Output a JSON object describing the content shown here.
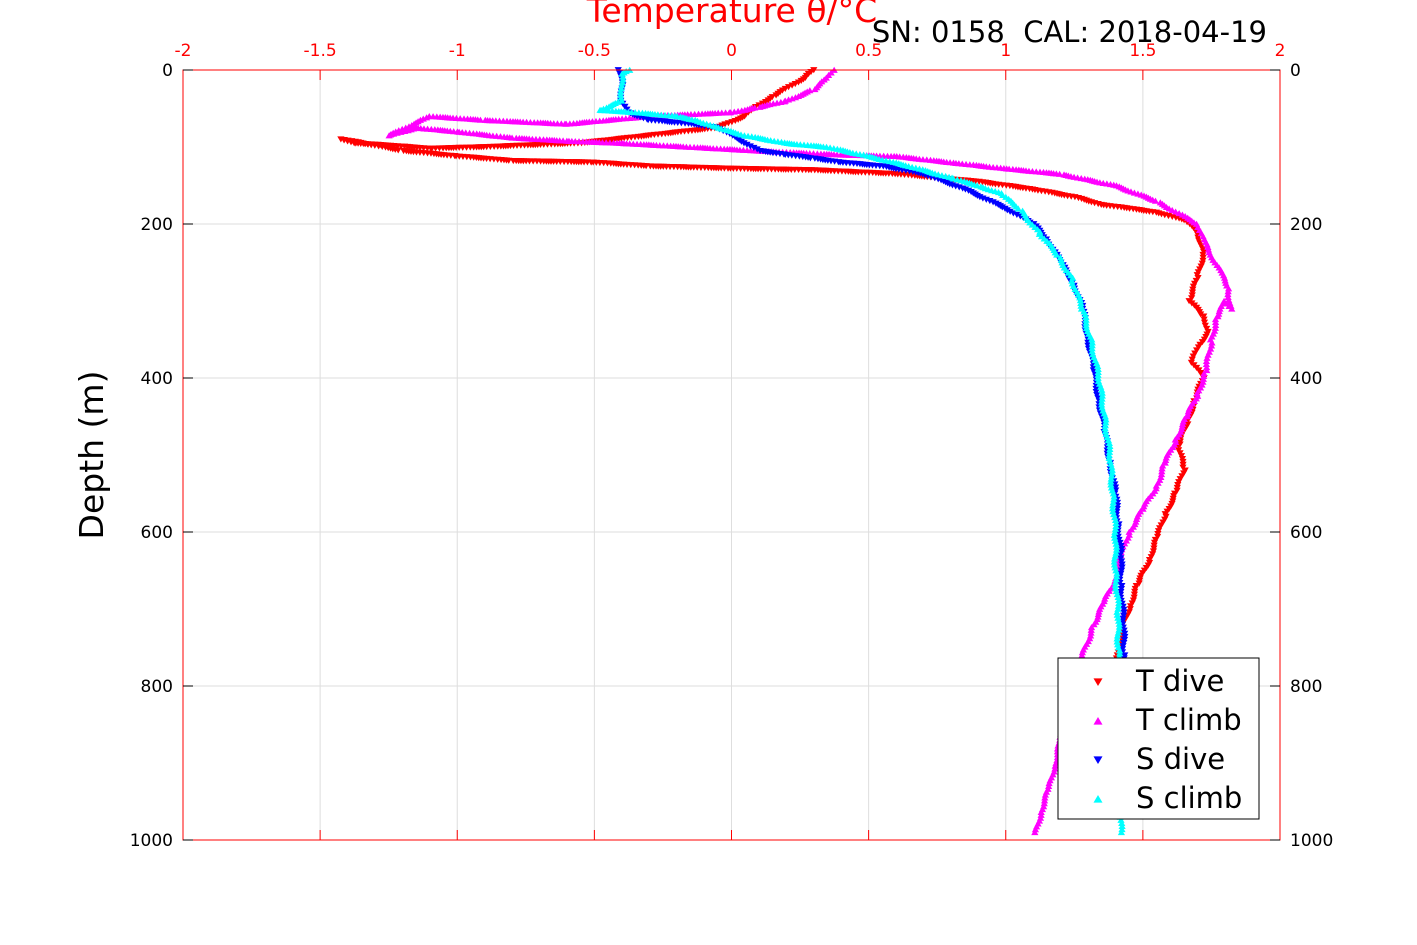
{
  "header": {
    "annotation": "SN: 0158  CAL: 2018-04-19"
  },
  "chart_data": {
    "type": "scatter",
    "title": "",
    "xlabel": "Temperature θ/°C",
    "ylabel": "Depth (m)",
    "xlim": [
      -2,
      2
    ],
    "ylim": [
      0,
      1000
    ],
    "y_reversed": true,
    "x_ticks": [
      "-2",
      "-1.5",
      "-1",
      "-0.5",
      "0",
      "0.5",
      "1",
      "1.5",
      "2"
    ],
    "y_ticks": [
      "0",
      "200",
      "400",
      "600",
      "800",
      "1000"
    ],
    "x_tick_values": [
      -2,
      -1.5,
      -1,
      -0.5,
      0,
      0.5,
      1,
      1.5,
      2
    ],
    "y_tick_values": [
      0,
      200,
      400,
      600,
      800,
      1000
    ],
    "grid": true,
    "legend_position": "bottom-right",
    "axis_color": "#ff0000",
    "series": [
      {
        "name": "T dive",
        "marker": "triangle-down",
        "color": "#ff0000",
        "x": [
          0.3,
          0.27,
          0.22,
          0.15,
          0.08,
          0.05,
          -0.05,
          -0.3,
          -0.55,
          -0.9,
          -1.1,
          -1.25,
          -1.38,
          -1.42,
          -1.2,
          -1.0,
          -0.8,
          -0.5,
          -0.3,
          0.0,
          0.3,
          0.6,
          0.9,
          1.1,
          1.25,
          1.35,
          1.45,
          1.55,
          1.65,
          1.7,
          1.72,
          1.7,
          1.67,
          1.72,
          1.74,
          1.7,
          1.68,
          1.72,
          1.69,
          1.66,
          1.63,
          1.65,
          1.62,
          1.58,
          1.55,
          1.52,
          1.48,
          1.45,
          1.43,
          1.42,
          1.41,
          1.4
        ],
        "y": [
          0,
          10,
          20,
          35,
          50,
          60,
          75,
          85,
          95,
          100,
          102,
          98,
          95,
          90,
          105,
          112,
          118,
          120,
          125,
          128,
          130,
          135,
          145,
          155,
          165,
          175,
          180,
          185,
          195,
          210,
          240,
          270,
          300,
          320,
          340,
          360,
          380,
          400,
          430,
          460,
          490,
          520,
          550,
          580,
          610,
          640,
          670,
          700,
          720,
          740,
          760,
          780
        ]
      },
      {
        "name": "T climb",
        "marker": "triangle-up",
        "color": "#ff00ff",
        "x": [
          1.11,
          1.13,
          1.16,
          1.18,
          1.2,
          1.24,
          1.28,
          1.32,
          1.36,
          1.4,
          1.42,
          1.45,
          1.5,
          1.55,
          1.58,
          1.62,
          1.66,
          1.7,
          1.73,
          1.75,
          1.77,
          1.8,
          1.82,
          1.81,
          1.78,
          1.75,
          1.72,
          1.7,
          1.65,
          1.55,
          1.4,
          1.2,
          1.0,
          0.8,
          0.6,
          0.4,
          0.1,
          -0.15,
          -0.4,
          -0.6,
          -0.8,
          -1.0,
          -1.15,
          -1.25,
          -1.1,
          -0.9,
          -0.6,
          -0.3,
          0.0,
          0.1,
          0.2,
          0.3,
          0.35,
          0.37
        ],
        "y": [
          990,
          960,
          930,
          900,
          870,
          800,
          760,
          720,
          690,
          660,
          630,
          600,
          570,
          540,
          510,
          480,
          450,
          420,
          390,
          350,
          320,
          300,
          310,
          280,
          260,
          240,
          220,
          200,
          190,
          170,
          150,
          135,
          128,
          120,
          112,
          110,
          105,
          100,
          95,
          92,
          88,
          80,
          75,
          85,
          60,
          65,
          70,
          60,
          55,
          48,
          40,
          25,
          10,
          0
        ]
      },
      {
        "name": "S dive",
        "marker": "triangle-down",
        "color": "#0000ff",
        "x": [
          -0.41,
          -0.4,
          -0.4,
          -0.38,
          -0.3,
          -0.15,
          -0.05,
          0.0,
          0.05,
          0.1,
          0.2,
          0.3,
          0.4,
          0.55,
          0.7,
          0.85,
          1.0,
          1.1,
          1.15,
          1.2,
          1.25,
          1.28,
          1.3,
          1.32,
          1.34,
          1.36,
          1.38,
          1.4,
          1.41,
          1.42,
          1.42,
          1.43,
          1.43,
          1.43
        ],
        "y": [
          0,
          20,
          40,
          55,
          65,
          70,
          75,
          85,
          95,
          105,
          110,
          115,
          120,
          125,
          135,
          155,
          180,
          200,
          220,
          250,
          280,
          310,
          350,
          390,
          430,
          470,
          510,
          550,
          590,
          630,
          670,
          720,
          760,
          800
        ]
      },
      {
        "name": "S climb",
        "marker": "triangle-up",
        "color": "#00ffff",
        "x": [
          1.42,
          1.42,
          1.42,
          1.42,
          1.42,
          1.41,
          1.41,
          1.4,
          1.4,
          1.39,
          1.38,
          1.36,
          1.34,
          1.31,
          1.28,
          1.24,
          1.19,
          1.12,
          1.05,
          0.98,
          0.9,
          0.8,
          0.65,
          0.5,
          0.35,
          0.2,
          0.05,
          -0.05,
          -0.13,
          -0.2,
          -0.35,
          -0.48,
          -0.4,
          -0.4,
          -0.4,
          -0.37
        ],
        "y": [
          990,
          950,
          900,
          850,
          800,
          750,
          700,
          650,
          600,
          550,
          500,
          450,
          400,
          350,
          310,
          270,
          240,
          210,
          180,
          160,
          150,
          140,
          125,
          112,
          100,
          95,
          85,
          75,
          65,
          60,
          55,
          52,
          40,
          20,
          5,
          0
        ]
      }
    ]
  }
}
